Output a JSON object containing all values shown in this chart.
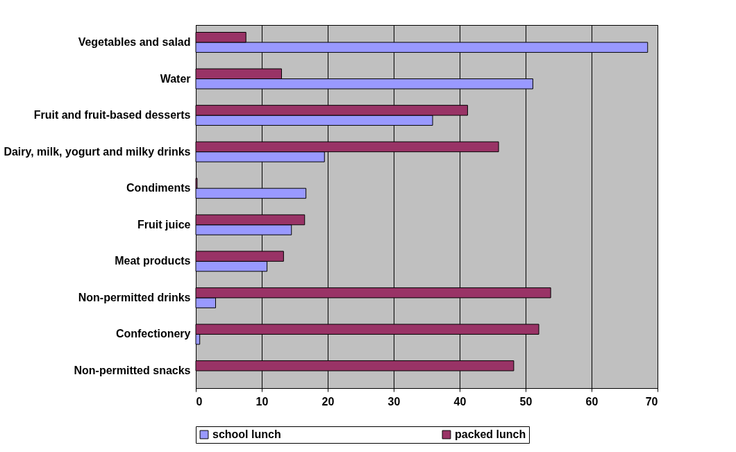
{
  "chart_data": {
    "type": "bar",
    "orientation": "horizontal",
    "categories": [
      "Vegetables and salad",
      "Water",
      "Fruit and fruit-based desserts",
      "Dairy, milk, yogurt and milky drinks",
      "Condiments",
      "Fruit juice",
      "Meat products",
      "Non-permitted drinks",
      "Confectionery",
      "Non-permitted snacks"
    ],
    "series": [
      {
        "name": "school lunch",
        "color": "#9999ff",
        "values": [
          68.5,
          51.1,
          35.9,
          19.5,
          16.7,
          14.5,
          10.8,
          3.0,
          0.6,
          null
        ]
      },
      {
        "name": "packed lunch",
        "color": "#993366",
        "values": [
          7.6,
          13.0,
          41.2,
          45.9,
          0.2,
          16.5,
          13.3,
          53.8,
          52.0,
          48.2
        ]
      }
    ],
    "xlim": [
      0,
      70
    ],
    "xticks": [
      0,
      10,
      20,
      30,
      40,
      50,
      60,
      70
    ],
    "grid": "x",
    "legend": "bottom"
  }
}
